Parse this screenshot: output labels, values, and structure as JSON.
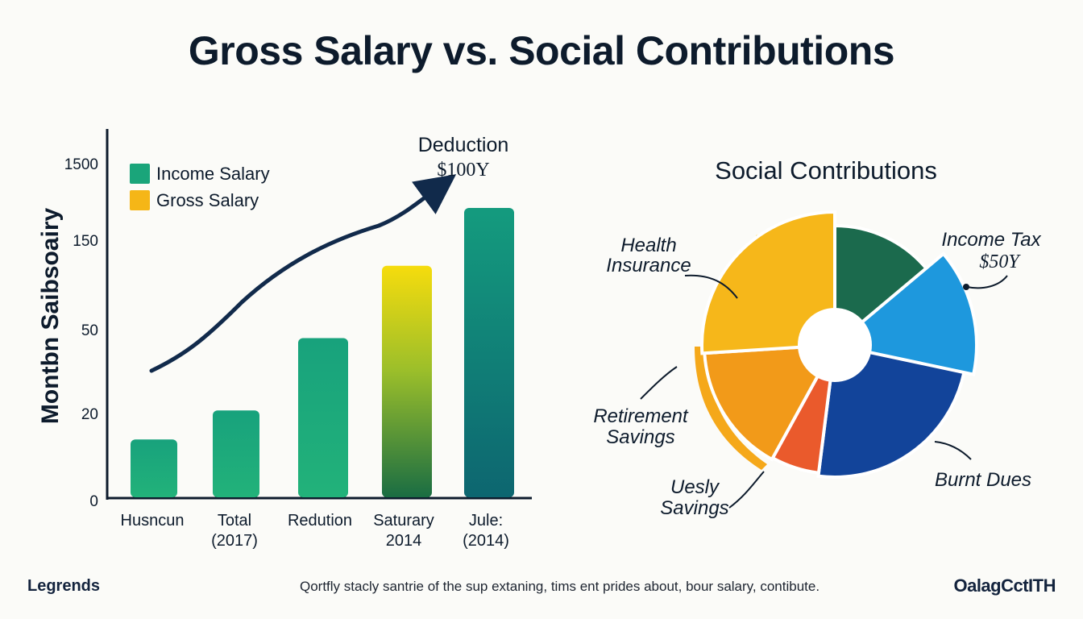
{
  "title": "Gross Salary vs. Social Contributions",
  "footer": {
    "left": "Legrends",
    "center": "Qortfly stacly santrie of the sup extaning, tims ent prides about, bour salary, contibute.",
    "right": "OalagCctITH"
  },
  "colors": {
    "bar_green": "#1aa57a",
    "bar_teal": "#0e7872",
    "bar_yellow": "#f5d90f",
    "arrow": "#112a4b",
    "pie_green": "#1b6a4d",
    "pie_blue_light": "#1e98dd",
    "pie_blue_dark": "#12449a",
    "pie_red": "#ea5a2c",
    "pie_orange": "#f29a19",
    "pie_yellow": "#f6b71a"
  },
  "chart_data": [
    {
      "type": "bar",
      "ylabel": "Montbn Saibsoairy",
      "yticks": [
        "1500",
        "150",
        "50",
        "20",
        "0"
      ],
      "categories": [
        "Husncun",
        "Total (2017)",
        "Redution",
        "Saturary 2014",
        "Jule: (2014)"
      ],
      "values": [
        20,
        30,
        55,
        80,
        100
      ],
      "legend": [
        "Income Salary",
        "Gross Salary"
      ],
      "annotation": {
        "line1": "Deduction",
        "line2": "$100Y"
      },
      "trend_line": true
    },
    {
      "type": "pie",
      "title": "Social Contributions",
      "slices": [
        {
          "label": "Income Tax $50Y",
          "value": 14
        },
        {
          "label": "Burnt Dues",
          "value": 38
        },
        {
          "label": "Uesly Savings",
          "value": 6
        },
        {
          "label": "Retirement Savings",
          "value": 16
        },
        {
          "label": "Health Insurance",
          "value": 26
        }
      ],
      "labels": {
        "health": [
          "Health",
          "Insurance"
        ],
        "income_tax": [
          "Income Tax",
          "$50Y"
        ],
        "retirement": [
          "Retirement",
          "Savings"
        ],
        "uesly": [
          "Uesly",
          "Savings"
        ],
        "burnt": "Burnt Dues"
      }
    }
  ]
}
